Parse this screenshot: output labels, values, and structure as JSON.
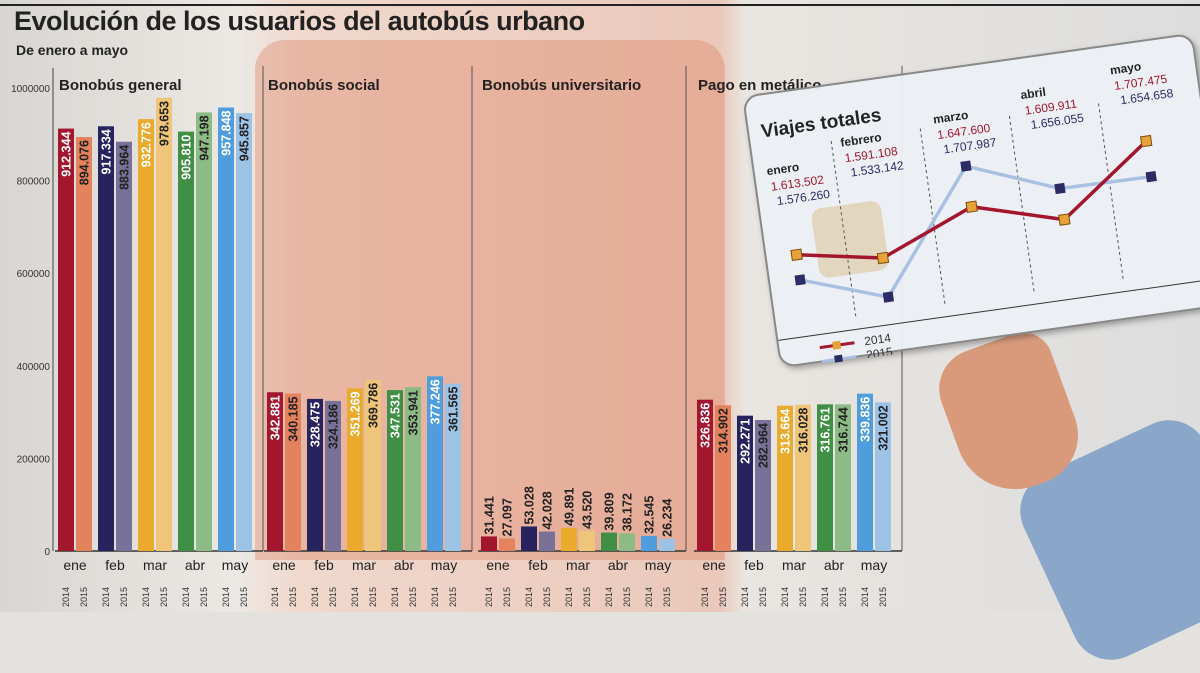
{
  "header": {
    "title": "Evolución de los usuarios del autobús urbano",
    "subtitle": "De enero a mayo"
  },
  "chart_data": [
    {
      "type": "bar",
      "title": "",
      "ylim": [
        0,
        1000000
      ],
      "yticks": [
        0,
        200000,
        400000,
        600000,
        800000,
        1000000
      ],
      "categories": [
        "ene",
        "feb",
        "mar",
        "abr",
        "may"
      ],
      "series_names": [
        "2014",
        "2015"
      ],
      "panels": [
        {
          "title": "Bonobús general",
          "series": [
            {
              "name": "2014",
              "values": [
                912344,
                917334,
                932776,
                905810,
                957848
              ]
            },
            {
              "name": "2015",
              "values": [
                894076,
                883964,
                978653,
                947198,
                945857
              ]
            }
          ]
        },
        {
          "title": "Bonobús social",
          "series": [
            {
              "name": "2014",
              "values": [
                342881,
                328475,
                351269,
                347531,
                377246
              ]
            },
            {
              "name": "2015",
              "values": [
                340185,
                324186,
                369786,
                353941,
                361565
              ]
            }
          ]
        },
        {
          "title": "Bonobús universitario",
          "series": [
            {
              "name": "2014",
              "values": [
                31441,
                53028,
                49891,
                39809,
                32545
              ]
            },
            {
              "name": "2015",
              "values": [
                27097,
                42028,
                43520,
                38172,
                26234
              ]
            }
          ]
        },
        {
          "title": "Pago en metálico",
          "series": [
            {
              "name": "2014",
              "values": [
                326836,
                292271,
                313664,
                316761,
                339836
              ]
            },
            {
              "name": "2015",
              "values": [
                314902,
                282964,
                316028,
                316744,
                321002
              ]
            }
          ]
        }
      ],
      "colors": {
        "ene": [
          "#a3162e",
          "#e5825e"
        ],
        "feb": [
          "#27235f",
          "#7a7198"
        ],
        "mar": [
          "#eaaa2c",
          "#efc57a"
        ],
        "abr": [
          "#3f8f45",
          "#8cbb85"
        ],
        "may": [
          "#4f9ddd",
          "#9cc3e6"
        ]
      }
    },
    {
      "type": "line",
      "title": "Viajes totales",
      "categories": [
        "enero",
        "febrero",
        "marzo",
        "abril",
        "mayo"
      ],
      "series": [
        {
          "name": "2014",
          "values": [
            1613502,
            1591108,
            1647600,
            1609911,
            1707475
          ],
          "color": "#a3162e"
        },
        {
          "name": "2015",
          "values": [
            1576260,
            1533142,
            1707987,
            1656055,
            1654658
          ],
          "color": "#2b2b66"
        }
      ]
    }
  ]
}
